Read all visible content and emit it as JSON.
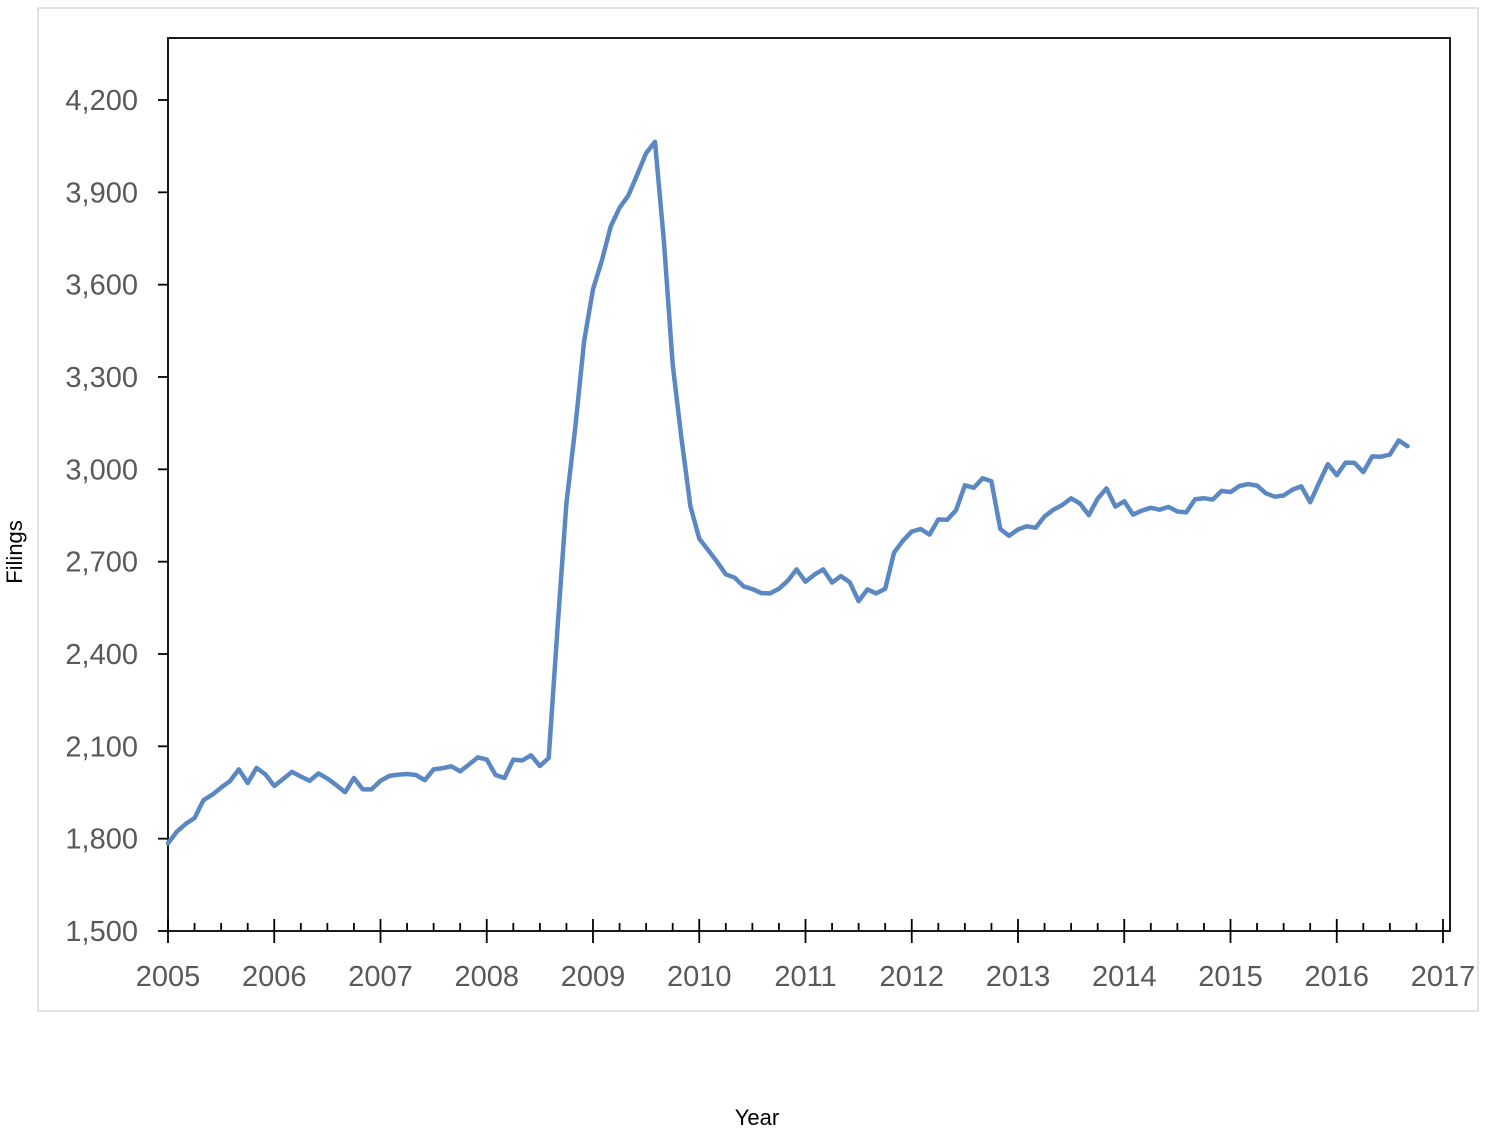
{
  "chart_data": {
    "type": "line",
    "title": "",
    "xlabel": "Year",
    "ylabel": "Filings",
    "xlim": [
      2005,
      2017
    ],
    "ylim": [
      1500,
      4200
    ],
    "x_ticks": [
      "2005",
      "2006",
      "2007",
      "2008",
      "2009",
      "2010",
      "2011",
      "2012",
      "2013",
      "2014",
      "2015",
      "2016",
      "2017"
    ],
    "y_ticks": [
      1500,
      1800,
      2100,
      2400,
      2700,
      3000,
      3300,
      3600,
      3900,
      4200
    ],
    "y_tick_labels": [
      "1,500",
      "1,800",
      "2,100",
      "2,400",
      "2,700",
      "3,000",
      "3,300",
      "3,600",
      "3,900",
      "4,200"
    ],
    "grid": false,
    "legend": "none",
    "series_color": "#5B88C2",
    "series": [
      {
        "values": [
          1785,
          1823,
          1848,
          1867,
          1925,
          1943,
          1966,
          1987,
          2025,
          1981,
          2030,
          2009,
          1971,
          1994,
          2017,
          2002,
          1988,
          2012,
          1995,
          1974,
          1951,
          1997,
          1960,
          1960,
          1988,
          2004,
          2008,
          2010,
          2007,
          1990,
          2025,
          2029,
          2035,
          2019,
          2041,
          2064,
          2057,
          2007,
          1997,
          2057,
          2054,
          2071,
          2036,
          2062,
          2488,
          2889,
          3137,
          3416,
          3585,
          3679,
          3789,
          3850,
          3890,
          3958,
          4027,
          4064,
          3745,
          3340,
          3100,
          2880,
          2775,
          2738,
          2700,
          2659,
          2648,
          2620,
          2611,
          2598,
          2597,
          2612,
          2638,
          2675,
          2635,
          2658,
          2675,
          2632,
          2653,
          2633,
          2572,
          2610,
          2597,
          2612,
          2729,
          2768,
          2798,
          2806,
          2788,
          2837,
          2836,
          2867,
          2948,
          2940,
          2971,
          2961,
          2806,
          2784,
          2805,
          2815,
          2810,
          2847,
          2869,
          2884,
          2906,
          2889,
          2851,
          2905,
          2938,
          2879,
          2896,
          2853,
          2866,
          2875,
          2869,
          2878,
          2863,
          2860,
          2903,
          2906,
          2902,
          2930,
          2926,
          2946,
          2952,
          2947,
          2922,
          2911,
          2915,
          2934,
          2945,
          2893,
          2956,
          3017,
          2981,
          3022,
          3021,
          2991,
          3042,
          3041,
          3048,
          3094,
          3075
        ],
        "start_year": 2005,
        "points_per_year": 12
      }
    ]
  }
}
